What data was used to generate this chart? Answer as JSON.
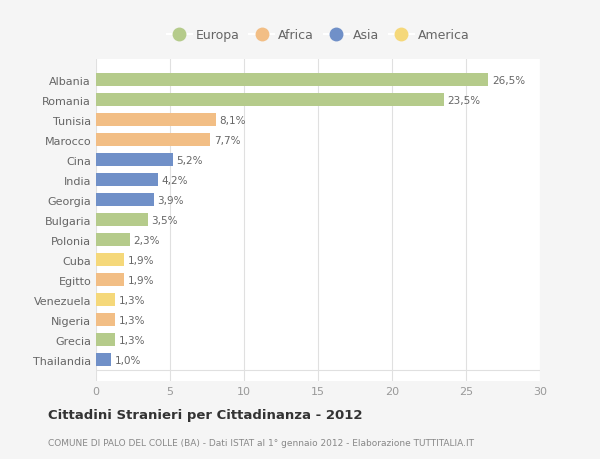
{
  "categories": [
    "Albania",
    "Romania",
    "Tunisia",
    "Marocco",
    "Cina",
    "India",
    "Georgia",
    "Bulgaria",
    "Polonia",
    "Cuba",
    "Egitto",
    "Venezuela",
    "Nigeria",
    "Grecia",
    "Thailandia"
  ],
  "values": [
    26.5,
    23.5,
    8.1,
    7.7,
    5.2,
    4.2,
    3.9,
    3.5,
    2.3,
    1.9,
    1.9,
    1.3,
    1.3,
    1.3,
    1.0
  ],
  "labels": [
    "26,5%",
    "23,5%",
    "8,1%",
    "7,7%",
    "5,2%",
    "4,2%",
    "3,9%",
    "3,5%",
    "2,3%",
    "1,9%",
    "1,9%",
    "1,3%",
    "1,3%",
    "1,3%",
    "1,0%"
  ],
  "colors": [
    "#b5cb8b",
    "#b5cb8b",
    "#f2be85",
    "#f2be85",
    "#7090c8",
    "#7090c8",
    "#7090c8",
    "#b5cb8b",
    "#b5cb8b",
    "#f5d87a",
    "#f2be85",
    "#f5d87a",
    "#f2be85",
    "#b5cb8b",
    "#7090c8"
  ],
  "legend_labels": [
    "Europa",
    "Africa",
    "Asia",
    "America"
  ],
  "legend_colors": [
    "#b5cb8b",
    "#f2be85",
    "#7090c8",
    "#f5d87a"
  ],
  "title": "Cittadini Stranieri per Cittadinanza - 2012",
  "subtitle": "COMUNE DI PALO DEL COLLE (BA) - Dati ISTAT al 1° gennaio 2012 - Elaborazione TUTTITALIA.IT",
  "xlim": [
    0,
    30
  ],
  "xticks": [
    0,
    5,
    10,
    15,
    20,
    25,
    30
  ],
  "background_color": "#f5f5f5",
  "bar_background": "#ffffff",
  "grid_color": "#e0e0e0"
}
